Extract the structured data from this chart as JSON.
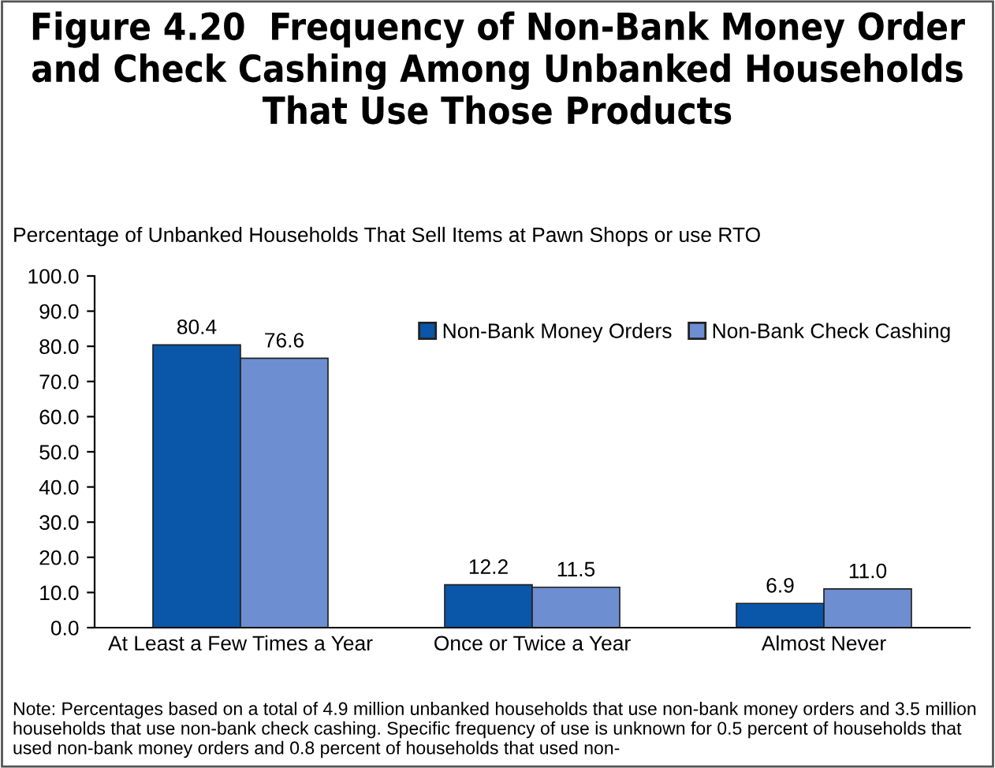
{
  "chart_data": {
    "type": "bar",
    "title": "Figure 4.20  Frequency of Non-Bank Money Order and Check Cashing Among Unbanked Households That Use Those Products",
    "subtitle": "Percentage of Unbanked Households That Sell Items at Pawn Shops or use RTO",
    "categories": [
      "At Least a Few Times a Year",
      "Once or Twice a Year",
      "Almost Never"
    ],
    "series": [
      {
        "name": "Non-Bank Money Orders",
        "color": "#0a56a8",
        "values": [
          80.4,
          12.2,
          6.9
        ]
      },
      {
        "name": "Non-Bank Check Cashing",
        "color": "#6d8fd1",
        "values": [
          76.6,
          11.5,
          11.0
        ]
      }
    ],
    "ylim": [
      0,
      100
    ],
    "yticks": [
      {
        "value": 0,
        "label": "0.0"
      },
      {
        "value": 10,
        "label": "10.0"
      },
      {
        "value": 20,
        "label": "20.0"
      },
      {
        "value": 30,
        "label": "30.0"
      },
      {
        "value": 40,
        "label": "40.0"
      },
      {
        "value": 50,
        "label": "50.0"
      },
      {
        "value": 60,
        "label": "60.0"
      },
      {
        "value": 70,
        "label": "70.0"
      },
      {
        "value": 80,
        "label": "80.0"
      },
      {
        "value": 90,
        "label": "90.0"
      },
      {
        "value": 100,
        "label": "100.0"
      }
    ],
    "value_labels": [
      [
        "80.4",
        "12.2",
        "6.9"
      ],
      [
        "76.6",
        "11.5",
        "11.0"
      ]
    ],
    "legend": "top right",
    "annotations": [
      "Note: Percentages based on a total of 4.9 million unbanked households that use non-bank money orders and 3.5 million households that use non-bank check cashing. Specific frequency of use is unknown for 0.5 percent of households that used non-bank money orders and 0.8 percent of households that used non-"
    ]
  }
}
